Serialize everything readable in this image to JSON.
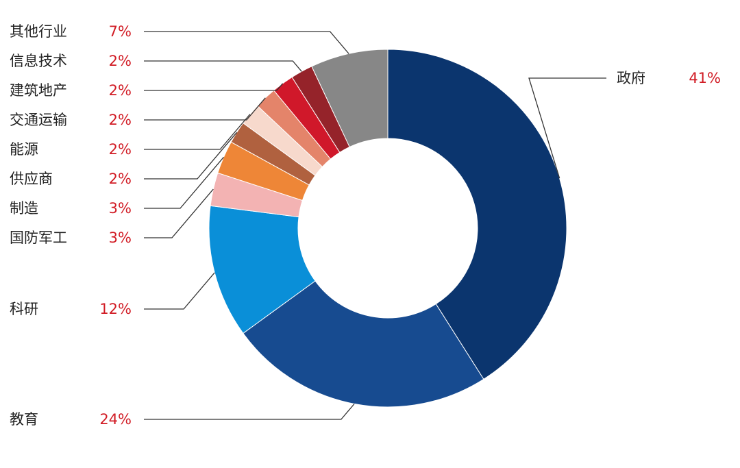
{
  "chart_data": {
    "type": "pie",
    "donut": true,
    "title": "",
    "legend": "none",
    "slices": [
      {
        "label": "政府",
        "value_label": "41%",
        "value": 41,
        "color": "#0b356e"
      },
      {
        "label": "教育",
        "value_label": "24%",
        "value": 24,
        "color": "#174b90"
      },
      {
        "label": "科研",
        "value_label": "12%",
        "value": 12,
        "color": "#0a8fd8"
      },
      {
        "label": "国防军工",
        "value_label": "3%",
        "value": 3,
        "color": "#f3b3b3"
      },
      {
        "label": "制造",
        "value_label": "3%",
        "value": 3,
        "color": "#ee8637"
      },
      {
        "label": "供应商",
        "value_label": "2%",
        "value": 2,
        "color": "#b0613f"
      },
      {
        "label": "能源",
        "value_label": "2%",
        "value": 2,
        "color": "#f7d9cc"
      },
      {
        "label": "交通运输",
        "value_label": "2%",
        "value": 2,
        "color": "#e4846a"
      },
      {
        "label": "建筑地产",
        "value_label": "2%",
        "value": 2,
        "color": "#d0182a"
      },
      {
        "label": "信息技术",
        "value_label": "2%",
        "value": 2,
        "color": "#95232a"
      },
      {
        "label": "其他行业",
        "value_label": "7%",
        "value": 7,
        "color": "#878787"
      }
    ]
  },
  "colors": {
    "label_text": "#222222",
    "percent_text": "#d11b24",
    "leader_line": "#333333"
  }
}
